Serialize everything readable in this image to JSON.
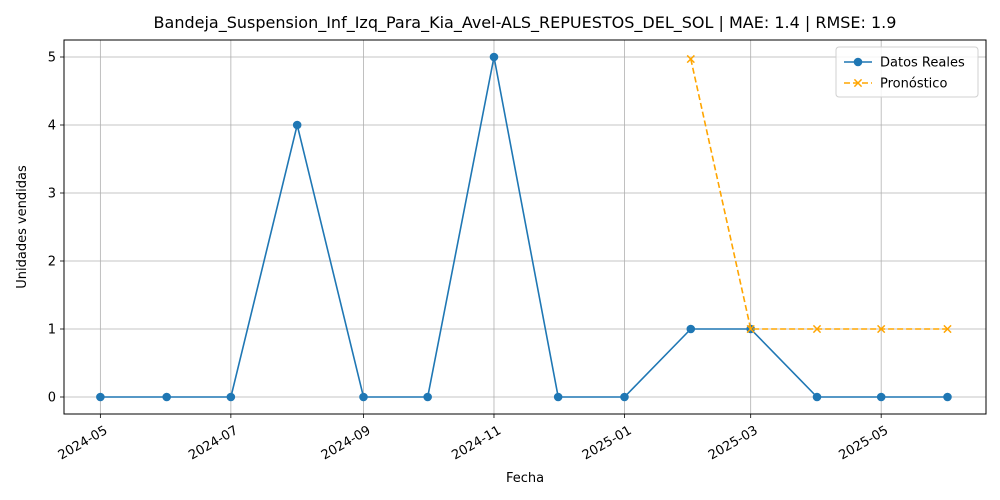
{
  "chart_data": {
    "type": "line",
    "title": "Bandeja_Suspension_Inf_Izq_Para_Kia_Avel-ALS_REPUESTOS_DEL_SOL | MAE: 1.4 | RMSE: 1.9",
    "xlabel": "Fecha",
    "ylabel": "Unidades vendidas",
    "xlim": [
      "2024-04-14",
      "2025-06-19"
    ],
    "ylim": [
      -0.25,
      5.25
    ],
    "x_ticks": [
      "2024-05",
      "2024-07",
      "2024-09",
      "2024-11",
      "2025-01",
      "2025-03",
      "2025-05"
    ],
    "y_ticks": [
      0,
      1,
      2,
      3,
      4,
      5
    ],
    "grid": true,
    "legend_position": "top-right",
    "series": [
      {
        "name": "Datos Reales",
        "color": "#1f77b4",
        "marker": "circle",
        "line_style": "solid",
        "x": [
          "2024-05-01",
          "2024-06-01",
          "2024-07-01",
          "2024-08-01",
          "2024-09-01",
          "2024-10-01",
          "2024-11-01",
          "2024-12-01",
          "2025-01-01",
          "2025-02-01",
          "2025-03-01",
          "2025-04-01",
          "2025-05-01",
          "2025-06-01"
        ],
        "values": [
          0,
          0,
          0,
          4,
          0,
          0,
          5,
          0,
          0,
          1,
          1,
          0,
          0,
          0
        ]
      },
      {
        "name": "Pronóstico",
        "color": "#ffa500",
        "marker": "x",
        "line_style": "dashed",
        "x": [
          "2025-02-01",
          "2025-03-01",
          "2025-04-01",
          "2025-05-01",
          "2025-06-01"
        ],
        "values": [
          4.97,
          1,
          1,
          1,
          1
        ]
      }
    ]
  }
}
